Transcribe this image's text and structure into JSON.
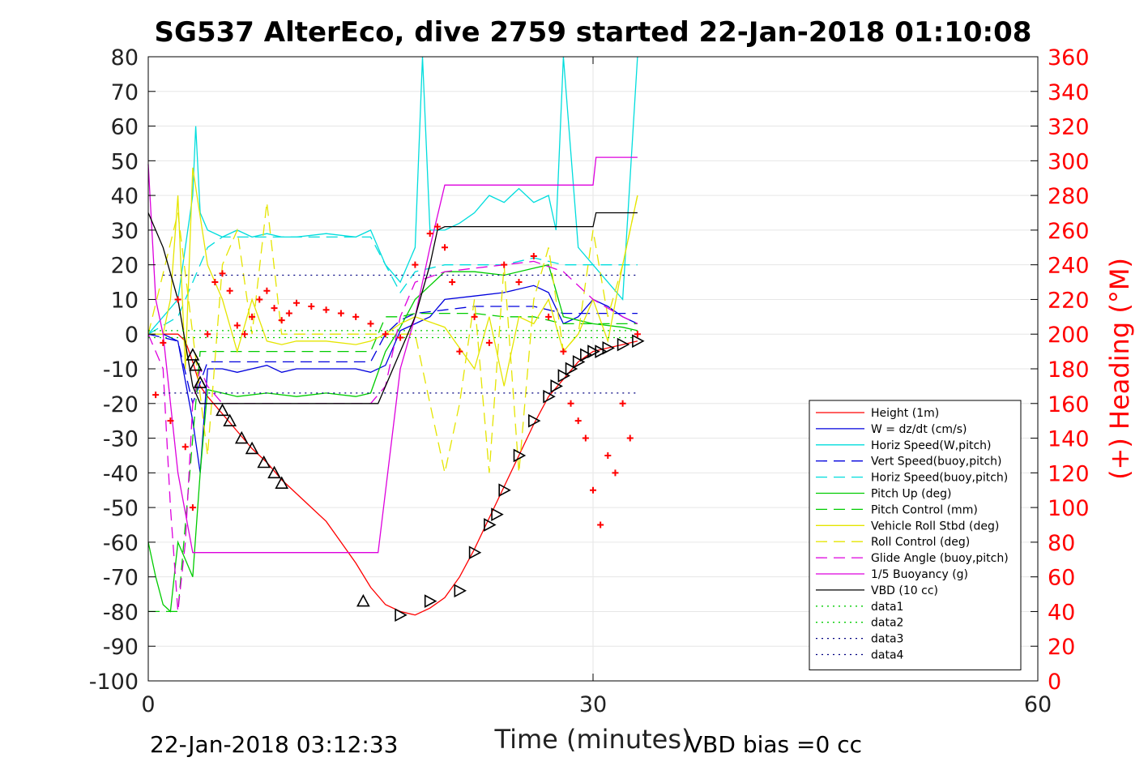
{
  "chart_data": {
    "type": "line",
    "title": "SG537 AlterEco, dive 2759 started 22-Jan-2018 01:10:08",
    "xlabel": "Time (minutes)",
    "ylabel_right": "(+) Heading (°M)",
    "footer_left": "22-Jan-2018 03:12:33",
    "footer_right": "VBD bias =0 cc",
    "xlim": [
      0,
      60
    ],
    "ylim": [
      -100,
      80
    ],
    "ylim_right": [
      0,
      360
    ],
    "x_ticks": [
      "0",
      "30",
      "60"
    ],
    "y_ticks": [
      "80",
      "70",
      "60",
      "50",
      "40",
      "30",
      "20",
      "10",
      "0",
      "-10",
      "-20",
      "-30",
      "-40",
      "-50",
      "-60",
      "-70",
      "-80",
      "-90",
      "-100"
    ],
    "y2_ticks": [
      "360",
      "340",
      "320",
      "300",
      "280",
      "260",
      "240",
      "220",
      "200",
      "180",
      "160",
      "140",
      "120",
      "100",
      "80",
      "60",
      "40",
      "20",
      "0"
    ],
    "grid": true,
    "legend_position": "bottom-right",
    "colors": {
      "heading": "#ff0000",
      "right_axis": "#ff0000"
    },
    "series": [
      {
        "name": "Height (1m)",
        "color": "#ff0000",
        "dash": "solid",
        "x": [
          0,
          0.5,
          1,
          1.5,
          2,
          2.5,
          3,
          3.5,
          4,
          5,
          6,
          7,
          8,
          9,
          10,
          11,
          12,
          13,
          14,
          15,
          16,
          17,
          18,
          19,
          20,
          21,
          22,
          23,
          24,
          25,
          26,
          27,
          28,
          29,
          30,
          31,
          32,
          33
        ],
        "y": [
          0,
          0,
          0,
          0,
          0,
          -2,
          -8,
          -15,
          -18,
          -23,
          -28,
          -33,
          -37,
          -42,
          -46,
          -50,
          -54,
          -60,
          -66,
          -73,
          -78,
          -80,
          -81,
          -79,
          -76,
          -70,
          -62,
          -53,
          -44,
          -35,
          -26,
          -18,
          -13,
          -8,
          -5,
          -4,
          -3,
          -2
        ]
      },
      {
        "name": "W = dz/dt (cm/s)",
        "color": "#0000dd",
        "dash": "solid",
        "x": [
          0,
          1,
          2,
          3,
          3.5,
          4,
          5,
          6,
          7,
          8,
          9,
          10,
          12,
          14,
          15,
          16,
          17,
          18,
          19,
          20,
          22,
          24,
          26,
          27,
          28,
          29,
          30,
          31,
          32,
          33
        ],
        "y": [
          0,
          0,
          -2,
          -25,
          -40,
          -10,
          -10,
          -11,
          -10,
          -9,
          -11,
          -10,
          -10,
          -10,
          -11,
          -9,
          1,
          3,
          5,
          10,
          11,
          12,
          14,
          12,
          3,
          5,
          10,
          8,
          5,
          3
        ]
      },
      {
        "name": "Horiz Speed(W,pitch)",
        "color": "#00dddd",
        "dash": "solid",
        "x": [
          0,
          1,
          2,
          3,
          3.2,
          3.5,
          4,
          5,
          6,
          7,
          8,
          9,
          10,
          12,
          14,
          15,
          16,
          17,
          18,
          18.5,
          19,
          20,
          21,
          22,
          23,
          24,
          25,
          26,
          27,
          27.5,
          28,
          29,
          30,
          31,
          32,
          33
        ],
        "y": [
          0,
          5,
          10,
          40,
          60,
          35,
          30,
          28,
          30,
          28,
          29,
          28,
          28,
          29,
          28,
          30,
          20,
          15,
          25,
          80,
          30,
          30,
          32,
          35,
          40,
          38,
          42,
          38,
          40,
          30,
          80,
          25,
          20,
          15,
          10,
          80
        ]
      },
      {
        "name": "Vert Speed(buoy,pitch)",
        "color": "#0000dd",
        "dash": "long",
        "x": [
          0,
          2,
          3,
          4,
          5,
          8,
          10,
          12,
          14,
          15,
          16,
          17,
          18,
          20,
          22,
          24,
          26,
          28,
          30,
          33
        ],
        "y": [
          0,
          -2,
          -20,
          -8,
          -8,
          -8,
          -8,
          -8,
          -8,
          -8,
          0,
          4,
          6,
          7,
          8,
          8,
          8,
          6,
          6,
          6
        ]
      },
      {
        "name": "Horiz Speed(buoy,pitch)",
        "color": "#00dddd",
        "dash": "long",
        "x": [
          0,
          2,
          3,
          4,
          5,
          8,
          10,
          12,
          14,
          15,
          16,
          17,
          18,
          20,
          22,
          24,
          26,
          28,
          30,
          33
        ],
        "y": [
          0,
          5,
          15,
          25,
          28,
          28,
          28,
          28,
          28,
          28,
          20,
          12,
          18,
          20,
          20,
          20,
          22,
          20,
          20,
          20
        ]
      },
      {
        "name": "Pitch Up (deg)",
        "color": "#00cc00",
        "dash": "solid",
        "x": [
          0,
          0.5,
          1,
          1.5,
          2,
          2.5,
          3,
          3.5,
          4,
          5,
          6,
          8,
          10,
          12,
          14,
          15,
          16,
          17,
          18,
          20,
          22,
          24,
          26,
          27,
          28,
          30,
          32,
          33
        ],
        "y": [
          -60,
          -70,
          -78,
          -80,
          -60,
          -65,
          -70,
          -40,
          -16,
          -17,
          -18,
          -17,
          -18,
          -17,
          -18,
          -17,
          -5,
          2,
          10,
          18,
          18,
          17,
          19,
          20,
          5,
          3,
          2,
          1
        ]
      },
      {
        "name": "Pitch Control (mm)",
        "color": "#00cc00",
        "dash": "long",
        "x": [
          0,
          1,
          2,
          3,
          3.5,
          4,
          6,
          8,
          10,
          12,
          14,
          15,
          16,
          17,
          18,
          20,
          22,
          24,
          26,
          28,
          30,
          32,
          33
        ],
        "y": [
          -80,
          -80,
          -80,
          -30,
          -5,
          -5,
          -5,
          -5,
          -5,
          -5,
          -5,
          -5,
          5,
          5,
          6,
          6,
          6,
          5,
          5,
          3,
          3,
          3,
          3
        ]
      },
      {
        "name": "Vehicle Roll Stbd (deg)",
        "color": "#e5e500",
        "dash": "solid",
        "x": [
          0,
          1,
          1.5,
          2,
          2.5,
          3,
          4,
          5,
          6,
          7,
          8,
          9,
          10,
          12,
          14,
          15,
          16,
          17,
          18,
          20,
          22,
          23,
          24,
          25,
          26,
          27,
          28,
          29,
          30,
          31,
          32,
          33
        ],
        "y": [
          0,
          0,
          10,
          40,
          -10,
          48,
          20,
          10,
          -5,
          10,
          -2,
          -3,
          -2,
          -2,
          -3,
          -2,
          0,
          3,
          5,
          2,
          -10,
          5,
          -15,
          5,
          3,
          10,
          -5,
          0,
          10,
          -2,
          20,
          40
        ]
      },
      {
        "name": "Roll Control (deg)",
        "color": "#e5e500",
        "dash": "long",
        "x": [
          0,
          2,
          3,
          4,
          5,
          6,
          7,
          8,
          9,
          10,
          12,
          14,
          15,
          16,
          17,
          18,
          20,
          21,
          22,
          23,
          24,
          25,
          26,
          27,
          28,
          29,
          30,
          31,
          32,
          33
        ],
        "y": [
          0,
          35,
          0,
          -35,
          20,
          30,
          0,
          38,
          0,
          0,
          0,
          0,
          0,
          0,
          0,
          0,
          -40,
          -20,
          10,
          -40,
          20,
          -40,
          10,
          25,
          -5,
          0,
          30,
          5,
          20,
          40
        ]
      },
      {
        "name": "Glide Angle (buoy,pitch)",
        "color": "#dd00dd",
        "dash": "long",
        "x": [
          0,
          1,
          1.5,
          2,
          2.5,
          3,
          3.5,
          4,
          5,
          8,
          10,
          12,
          14,
          15,
          16,
          17,
          18,
          20,
          22,
          24,
          26,
          28,
          30,
          32,
          33
        ],
        "y": [
          0,
          -10,
          -50,
          -80,
          -60,
          -20,
          -10,
          -15,
          -20,
          -20,
          -20,
          -20,
          -20,
          -20,
          -15,
          5,
          15,
          18,
          19,
          20,
          21,
          18,
          10,
          5,
          3
        ]
      },
      {
        "name": "1/5 Buoyancy (g)",
        "color": "#dd00dd",
        "dash": "solid",
        "x": [
          0,
          0.5,
          1,
          2,
          3,
          4,
          15.5,
          17,
          18,
          19,
          20,
          21,
          24,
          26,
          30,
          30.2,
          31,
          33
        ],
        "y": [
          49,
          10,
          0,
          -40,
          -63,
          -63,
          -63,
          -10,
          5,
          25,
          43,
          43,
          43,
          43,
          43,
          51,
          51,
          51
        ]
      },
      {
        "name": "VBD (10 cc)",
        "color": "#000000",
        "dash": "solid",
        "x": [
          0,
          1,
          2,
          3,
          3.5,
          4,
          15.5,
          16.5,
          18,
          19,
          19.5,
          20,
          21,
          24,
          27,
          30,
          30.2,
          32,
          33
        ],
        "y": [
          35,
          25,
          10,
          -15,
          -20,
          -20,
          -20,
          -10,
          5,
          20,
          30,
          31,
          31,
          31,
          31,
          31,
          35,
          35,
          35
        ]
      },
      {
        "name": "data1",
        "color": "#00cc00",
        "dash": "dot",
        "x": [
          0,
          33
        ],
        "y": [
          -1,
          -1
        ]
      },
      {
        "name": "data2",
        "color": "#00cc00",
        "dash": "dot",
        "x": [
          0,
          33
        ],
        "y": [
          1,
          1
        ]
      },
      {
        "name": "data3",
        "color": "#000080",
        "dash": "dot",
        "x": [
          1,
          33
        ],
        "y": [
          -17,
          -17
        ]
      },
      {
        "name": "data4",
        "color": "#000080",
        "dash": "dot",
        "x": [
          1,
          33
        ],
        "y": [
          17,
          17
        ]
      }
    ],
    "heading_points": {
      "axis": "right",
      "color": "#ff0000",
      "x": [
        0.5,
        1,
        1.5,
        2,
        2.5,
        3,
        4,
        4.5,
        5,
        5.5,
        6,
        6.5,
        7,
        7.5,
        8,
        8.5,
        9,
        9.5,
        10,
        11,
        12,
        13,
        14,
        15,
        16,
        17,
        18,
        19,
        19.5,
        20,
        20.5,
        21,
        22,
        23,
        24,
        25,
        26,
        27,
        28,
        28.5,
        29,
        29.5,
        30,
        30.5,
        31,
        31.5,
        32,
        32.5,
        33
      ],
      "y": [
        165,
        195,
        150,
        220,
        135,
        100,
        200,
        230,
        235,
        225,
        205,
        200,
        210,
        220,
        225,
        215,
        208,
        212,
        218,
        216,
        214,
        212,
        210,
        206,
        200,
        198,
        240,
        258,
        262,
        250,
        230,
        190,
        210,
        195,
        240,
        230,
        245,
        210,
        190,
        160,
        150,
        140,
        110,
        90,
        130,
        120,
        160,
        140,
        200
      ]
    },
    "vbd_markers": {
      "x": [
        3,
        3.2,
        3.5,
        5,
        5.5,
        6.3,
        7,
        7.8,
        8.5,
        9,
        14.5,
        17,
        19,
        21,
        22,
        23,
        23.5,
        24,
        25,
        26,
        27,
        27.5,
        28,
        28.5,
        29,
        29.5,
        30,
        30.5,
        31,
        32,
        33
      ],
      "y": [
        -6,
        -9,
        -14,
        -22,
        -25,
        -30,
        -33,
        -37,
        -40,
        -43,
        -77,
        -81,
        -77,
        -74,
        -63,
        -55,
        -52,
        -45,
        -35,
        -25,
        -18,
        -15,
        -12,
        -10,
        -8,
        -6,
        -5,
        -5,
        -4,
        -3,
        -2
      ]
    }
  }
}
